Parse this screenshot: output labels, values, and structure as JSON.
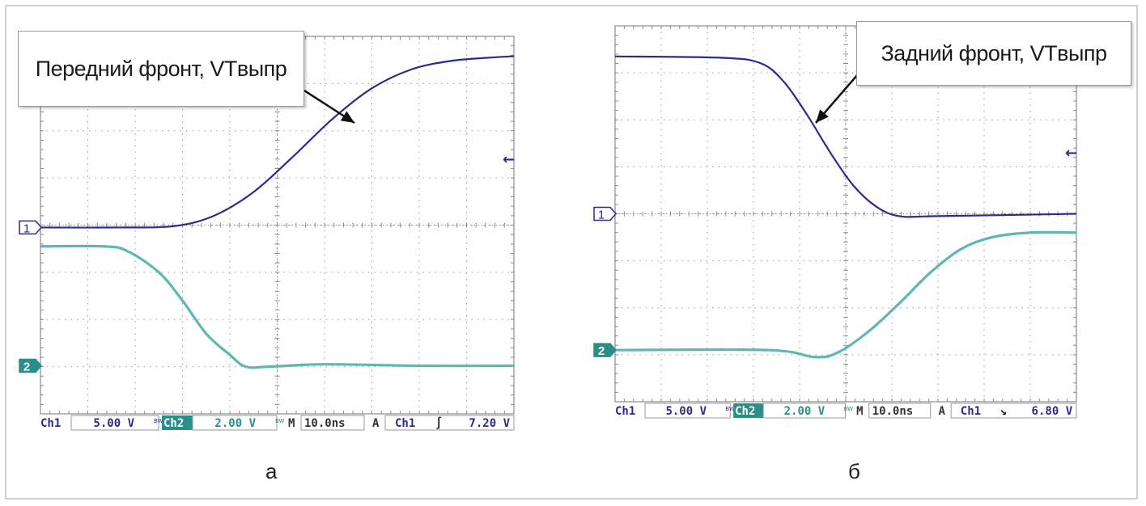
{
  "chart_data": [
    {
      "type": "line",
      "panel": "а",
      "title": "Передний фронт, VTвыпр",
      "xlabel": "",
      "ylabel": "",
      "grid": true,
      "series": [
        {
          "name": "Ch1",
          "color": "#2e2a8e",
          "points": [
            [
              0,
              -0.05
            ],
            [
              5.0,
              -0.05
            ],
            [
              8.5,
              -0.02
            ],
            [
              11.0,
              0.2
            ],
            [
              13.5,
              0.7
            ],
            [
              16.0,
              1.45
            ],
            [
              18.5,
              2.25
            ],
            [
              21.0,
              2.9
            ],
            [
              23.5,
              3.3
            ],
            [
              26.0,
              3.48
            ],
            [
              28.5,
              3.55
            ],
            [
              30.0,
              3.58
            ]
          ]
        },
        {
          "name": "Ch2",
          "color": "#5fb8b0",
          "points": [
            [
              0,
              -0.45
            ],
            [
              4.0,
              -0.45
            ],
            [
              5.5,
              -0.55
            ],
            [
              7.5,
              -1.0
            ],
            [
              9.0,
              -1.6
            ],
            [
              10.5,
              -2.3
            ],
            [
              12.0,
              -2.75
            ],
            [
              13.0,
              -3.0
            ],
            [
              14.5,
              -3.0
            ],
            [
              18.0,
              -2.95
            ],
            [
              24.0,
              -2.98
            ],
            [
              30.0,
              -2.98
            ]
          ]
        }
      ],
      "readout": {
        "ch1_label": "Ch1",
        "ch1_scale": "5.00 V",
        "ch2_label": "Ch2",
        "ch2_scale": "2.00 V",
        "bw_label": "BW",
        "m_label": "M",
        "time_scale": "10.0ns",
        "a_label": "A",
        "trig_ch": "Ch1",
        "trig_symbol": "∫",
        "trig_level": "7.20 V"
      },
      "markers": {
        "ch1": "1",
        "ch2": "2",
        "trigger": "←"
      },
      "caption": "а"
    },
    {
      "type": "line",
      "panel": "б",
      "title": "Задний фронт, VTвыпр",
      "xlabel": "",
      "ylabel": "",
      "grid": true,
      "series": [
        {
          "name": "Ch1",
          "color": "#2e2a8e",
          "points": [
            [
              0,
              3.35
            ],
            [
              7.0,
              3.32
            ],
            [
              9.5,
              3.2
            ],
            [
              11.0,
              2.8
            ],
            [
              12.5,
              2.1
            ],
            [
              14.0,
              1.3
            ],
            [
              15.5,
              0.6
            ],
            [
              17.0,
              0.15
            ],
            [
              18.5,
              -0.05
            ],
            [
              21.0,
              -0.05
            ],
            [
              30.0,
              0.0
            ]
          ]
        },
        {
          "name": "Ch2",
          "color": "#5fb8b0",
          "points": [
            [
              0,
              -2.9
            ],
            [
              10.0,
              -2.9
            ],
            [
              13.0,
              -3.05
            ],
            [
              14.5,
              -2.95
            ],
            [
              16.5,
              -2.5
            ],
            [
              18.5,
              -1.9
            ],
            [
              20.5,
              -1.25
            ],
            [
              22.5,
              -0.75
            ],
            [
              24.5,
              -0.5
            ],
            [
              27.0,
              -0.4
            ],
            [
              30.0,
              -0.4
            ]
          ]
        }
      ],
      "readout": {
        "ch1_label": "Ch1",
        "ch1_scale": "5.00 V",
        "ch2_label": "Ch2",
        "ch2_scale": "2.00 V",
        "bw_label": "BW",
        "m_label": "M",
        "time_scale": "10.0ns",
        "a_label": "A",
        "trig_ch": "Ch1",
        "trig_symbol": "↘",
        "trig_level": "6.80 V"
      },
      "markers": {
        "ch1": "1",
        "ch2": "2",
        "trigger": "←"
      },
      "caption": "б"
    }
  ]
}
